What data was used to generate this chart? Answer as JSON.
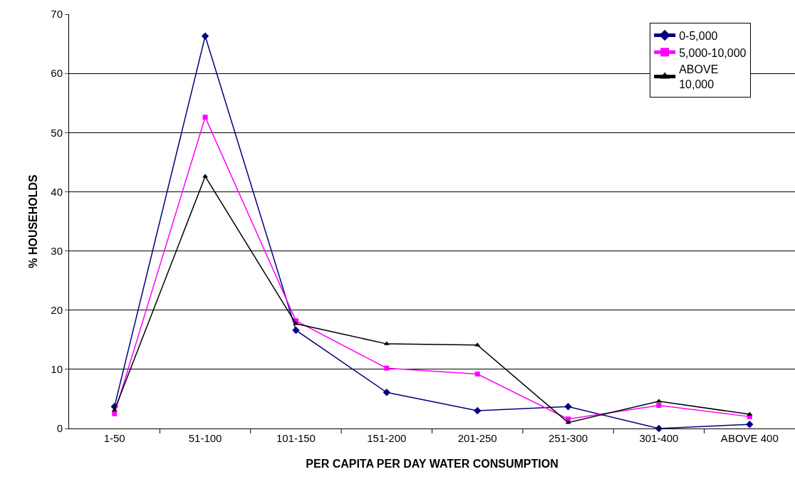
{
  "chart_data": {
    "type": "line",
    "xlabel": "PER CAPITA PER DAY WATER CONSUMPTION",
    "ylabel": "% HOUSEHOLDS",
    "categories": [
      "1-50",
      "51-100",
      "101-150",
      "151-200",
      "201-250",
      "251-300",
      "301-400",
      "ABOVE 400"
    ],
    "series": [
      {
        "name": "0-5,000",
        "color": "#000080",
        "marker": "diamond",
        "values": [
          3.7,
          66.3,
          16.6,
          6.1,
          3.0,
          3.7,
          0,
          0.7
        ]
      },
      {
        "name": "5,000-10,000",
        "color": "#ff00ff",
        "marker": "square",
        "values": [
          2.5,
          52.6,
          18.2,
          10.2,
          9.2,
          1.6,
          3.9,
          2.0
        ]
      },
      {
        "name": "ABOVE 10,000",
        "color": "#000000",
        "marker": "triangle",
        "values": [
          3.1,
          42.6,
          17.7,
          14.3,
          14.1,
          1.0,
          4.6,
          2.4
        ]
      }
    ],
    "ylim": [
      0,
      70
    ],
    "yticks": [
      0,
      10,
      20,
      30,
      40,
      50,
      60,
      70
    ],
    "grid": "y",
    "legend": "top right",
    "line_style": "solid"
  }
}
